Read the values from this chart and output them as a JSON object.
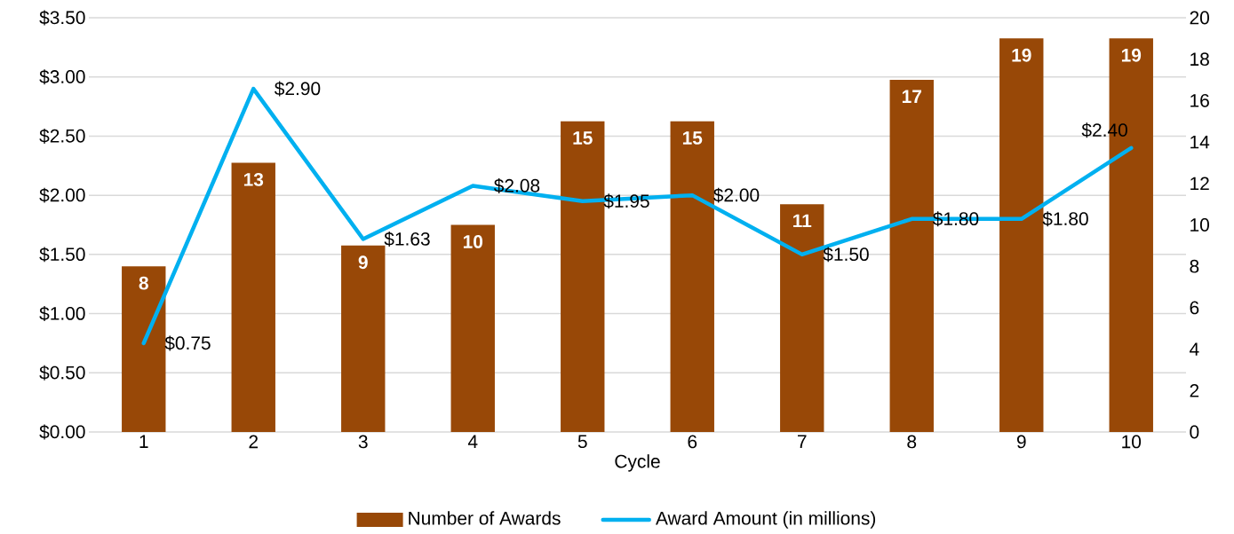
{
  "chart_data": {
    "type": "bar",
    "categories": [
      "1",
      "2",
      "3",
      "4",
      "5",
      "6",
      "7",
      "8",
      "9",
      "10"
    ],
    "series": [
      {
        "name": "Number of Awards",
        "axis": "y2",
        "color": "#984807",
        "values": [
          8,
          13,
          9,
          10,
          15,
          15,
          11,
          17,
          19,
          19
        ],
        "value_labels": [
          "8",
          "13",
          "9",
          "10",
          "15",
          "15",
          "11",
          "17",
          "19",
          "19"
        ]
      },
      {
        "name": "Award Amount (in millions)",
        "type": "line",
        "color": "#00b0f0",
        "values": [
          0.75,
          2.9,
          1.63,
          2.08,
          1.95,
          2.0,
          1.5,
          1.8,
          1.8,
          2.4
        ],
        "value_labels": [
          "$0.75",
          "$2.90",
          "$1.63",
          "$2.08",
          "$1.95",
          "$2.00",
          "$1.50",
          "$1.80",
          "$1.80",
          "$2.40"
        ]
      }
    ],
    "xlabel": "Cycle",
    "ylim": [
      0,
      3.5
    ],
    "yticks": [
      {
        "value": 0,
        "label": "$0.00"
      },
      {
        "value": 0.5,
        "label": "$0.50"
      },
      {
        "value": 1,
        "label": "$1.00"
      },
      {
        "value": 1.5,
        "label": "$1.50"
      },
      {
        "value": 2,
        "label": "$2.00"
      },
      {
        "value": 2.5,
        "label": "$2.50"
      },
      {
        "value": 3,
        "label": "$3.00"
      },
      {
        "value": 3.5,
        "label": "$3.50"
      }
    ],
    "y2lim": [
      0,
      20
    ],
    "y2ticks": [
      0,
      2,
      4,
      6,
      8,
      10,
      12,
      14,
      16,
      18,
      20
    ],
    "grid": "y",
    "legend": "bottom"
  }
}
